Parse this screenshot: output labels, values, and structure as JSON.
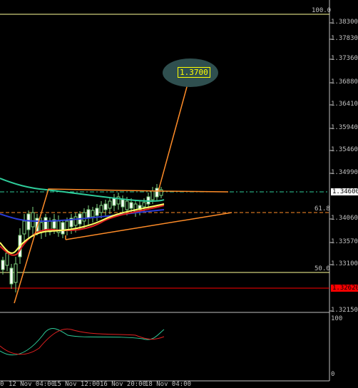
{
  "price_axis": {
    "ticks": [
      "1.38300",
      "1.37830",
      "1.37360",
      "1.36880",
      "1.36410",
      "1.35940",
      "1.35460",
      "1.34990",
      "1.34060",
      "1.33570",
      "1.33100",
      "1.32150"
    ],
    "current_price": "1.34600",
    "level_price": "1.32620"
  },
  "fib_levels": {
    "top_label": "100.0",
    "mid_label": "61.8",
    "low_label": "50.0"
  },
  "target": {
    "label": "1.3700"
  },
  "oscillator": {
    "max_label": "100",
    "min_label": "0"
  },
  "time_axis": {
    "labels": [
      "0",
      "12 Nov 04:00",
      "15 Nov 12:00",
      "16 Nov 20:00",
      "18 Nov 04:00"
    ]
  },
  "colors": {
    "fib_line": "#ffff99",
    "support_line": "#ff0000",
    "trend_line": "#ff8c28",
    "ma_green": "#2ecc9a",
    "ma_yellow": "#ffff66",
    "ma_red": "#e02020",
    "ma_blue": "#2a3bd6"
  }
}
